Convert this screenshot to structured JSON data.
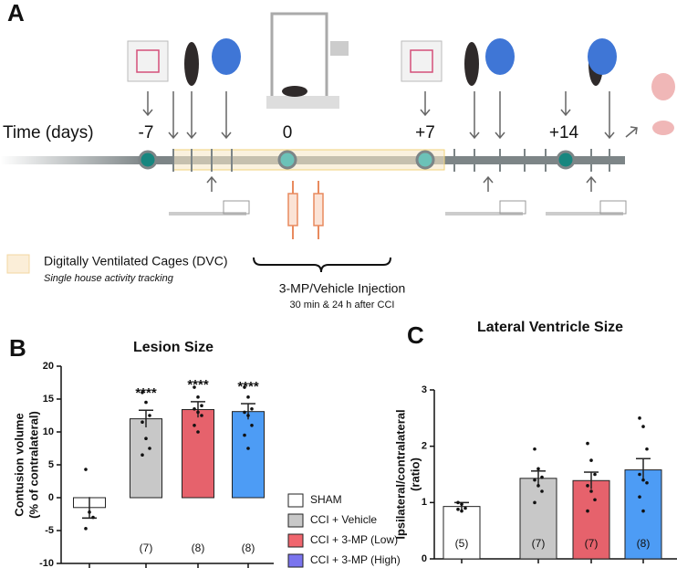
{
  "panel_a": {
    "label": "A",
    "time_label": "Time (days)",
    "time_points": [
      "-7",
      "0",
      "+7",
      "+14"
    ],
    "legend_box": "Digitally Ventilated Cages (DVC)",
    "legend_sub": "Single house activity tracking",
    "injection": "3-MP/Vehicle Injection",
    "injection_sub": "30 min & 24 h after CCI"
  },
  "chart_data": [
    {
      "type": "bar",
      "panel": "B",
      "title": "Lesion Size",
      "y_label": [
        "Contusion volume",
        "(% of contralateral)"
      ],
      "categories": [
        "SHAM",
        "CCI + Vehicle",
        "CCI + 3-MP (Low)",
        "CCI + 3-MP (High)"
      ],
      "colors": [
        "#ffffff",
        "#c8c8c8",
        "#e6626c",
        "#4d9cf5"
      ],
      "legend_colors": [
        "#ffffff",
        "#c8c8c8",
        "#f0666e",
        "#7a74ee"
      ],
      "values": [
        -1.5,
        12,
        13.4,
        13.1
      ],
      "errors": [
        1.6,
        1.3,
        1.2,
        1.2
      ],
      "significance": [
        null,
        "****",
        "****",
        "****"
      ],
      "n_labels": [
        null,
        "(7)",
        "(8)",
        "(8)"
      ],
      "points": [
        [
          4.3,
          -2.2,
          -3,
          -4.7
        ],
        [
          16,
          14.5,
          12.5,
          11.5,
          9,
          7.5,
          6.5
        ],
        [
          16.8,
          15.3,
          14,
          13.5,
          13,
          12.5,
          11,
          10
        ],
        [
          16.8,
          15.3,
          13.5,
          13,
          12.5,
          11,
          9.5,
          7.5
        ]
      ],
      "ylim": [
        -10,
        20
      ],
      "yticks": [
        -10,
        -5,
        0,
        5,
        10,
        15,
        20
      ],
      "legend": "right"
    },
    {
      "type": "bar",
      "panel": "C",
      "title": "Lateral Ventricle Size",
      "y_label": [
        "Ipsilateral/contralateral",
        "(ratio)"
      ],
      "categories": [
        "SHAM",
        "CCI + Vehicle",
        "CCI + 3-MP (Low)",
        "CCI + 3-MP (High)"
      ],
      "colors": [
        "#ffffff",
        "#c8c8c8",
        "#e6626c",
        "#4d9cf5"
      ],
      "values": [
        0.93,
        1.43,
        1.39,
        1.58
      ],
      "errors": [
        0.07,
        0.13,
        0.15,
        0.2
      ],
      "n_labels": [
        "(5)",
        "(7)",
        "(7)",
        "(8)"
      ],
      "points": [
        [
          1.0,
          0.97,
          0.9,
          0.88,
          0.85
        ],
        [
          1.95,
          1.6,
          1.45,
          1.4,
          1.3,
          1.2,
          1.0
        ],
        [
          2.05,
          1.75,
          1.5,
          1.3,
          1.2,
          1.05,
          0.85
        ],
        [
          2.5,
          2.35,
          1.95,
          1.5,
          1.4,
          1.35,
          1.1,
          0.85
        ]
      ],
      "ylim": [
        0,
        3
      ],
      "yticks": [
        0,
        1,
        2,
        3
      ]
    }
  ]
}
